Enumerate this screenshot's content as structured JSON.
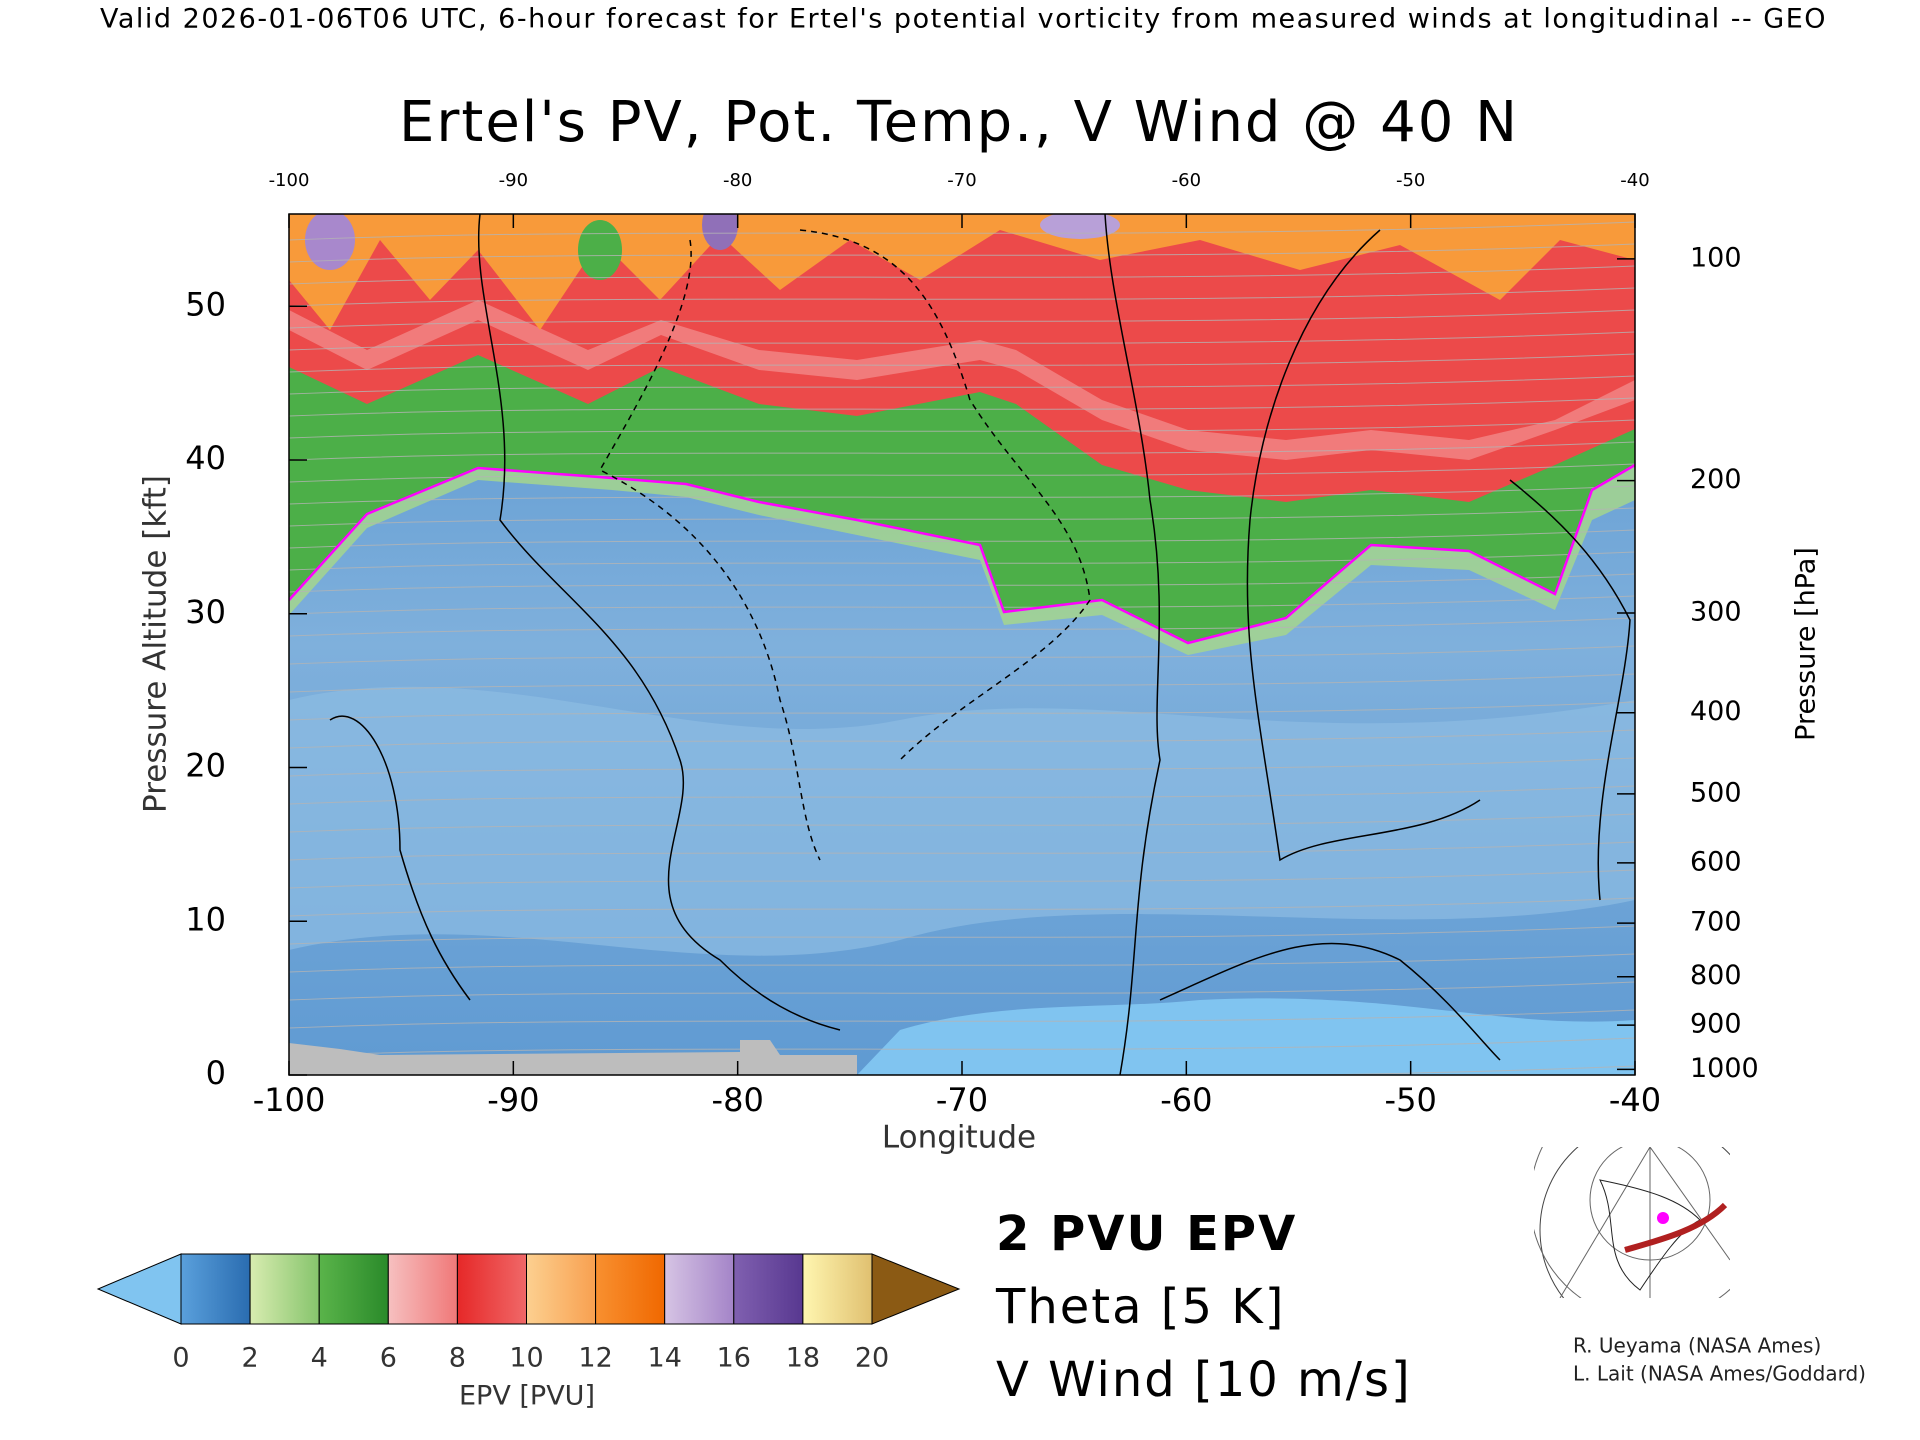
{
  "header": "Valid 2026-01-06T06 UTC, 6-hour forecast for Ertel's potential vorticity from measured winds at longitudinal -- GEO",
  "chart_data": {
    "type": "contour",
    "title": "Ertel's PV, Pot. Temp., V Wind @ 40 N",
    "x_label": "Longitude",
    "y_label": "Pressure Altitude [kft]",
    "y2_label": "Pressure [hPa]",
    "xlim": [
      -100,
      -40
    ],
    "xticks": [
      -100,
      -90,
      -80,
      -70,
      -60,
      -50,
      -40
    ],
    "ylim": [
      0,
      56
    ],
    "yticks": [
      0,
      10,
      20,
      30,
      40,
      50
    ],
    "y2ticks": [
      100,
      200,
      300,
      400,
      500,
      600,
      700,
      800,
      900,
      1000
    ],
    "colorbar": {
      "label": "EPV [PVU]",
      "ticks": [
        0,
        2,
        4,
        6,
        8,
        10,
        12,
        14,
        16,
        18,
        20
      ],
      "colors": [
        [
          "#5aa0dc",
          "#2a6cb0"
        ],
        [
          "#d8ecb0",
          "#86c46c"
        ],
        [
          "#5ab44a",
          "#2a8a2a"
        ],
        [
          "#f6c0c0",
          "#f07878"
        ],
        [
          "#e62828",
          "#f06868"
        ],
        [
          "#fcd090",
          "#f8a050"
        ],
        [
          "#f89030",
          "#f06800"
        ],
        [
          "#d6c4e4",
          "#a484c8"
        ],
        [
          "#8060b0",
          "#583890"
        ],
        [
          "#fff6b0",
          "#e0c070"
        ]
      ],
      "under_color": "#80c4f0",
      "over_color": "#8b5a14"
    },
    "legend": [
      {
        "name": "2 PVU EPV",
        "color": "#ff00ff"
      },
      {
        "name": "Theta [5 K]",
        "color": "#b4b4b4"
      },
      {
        "name": "V Wind [10 m/s]",
        "color": "#000000"
      }
    ]
  },
  "credits": [
    "R. Ueyama (NASA Ames)",
    "L. Lait (NASA Ames/Goddard)"
  ]
}
